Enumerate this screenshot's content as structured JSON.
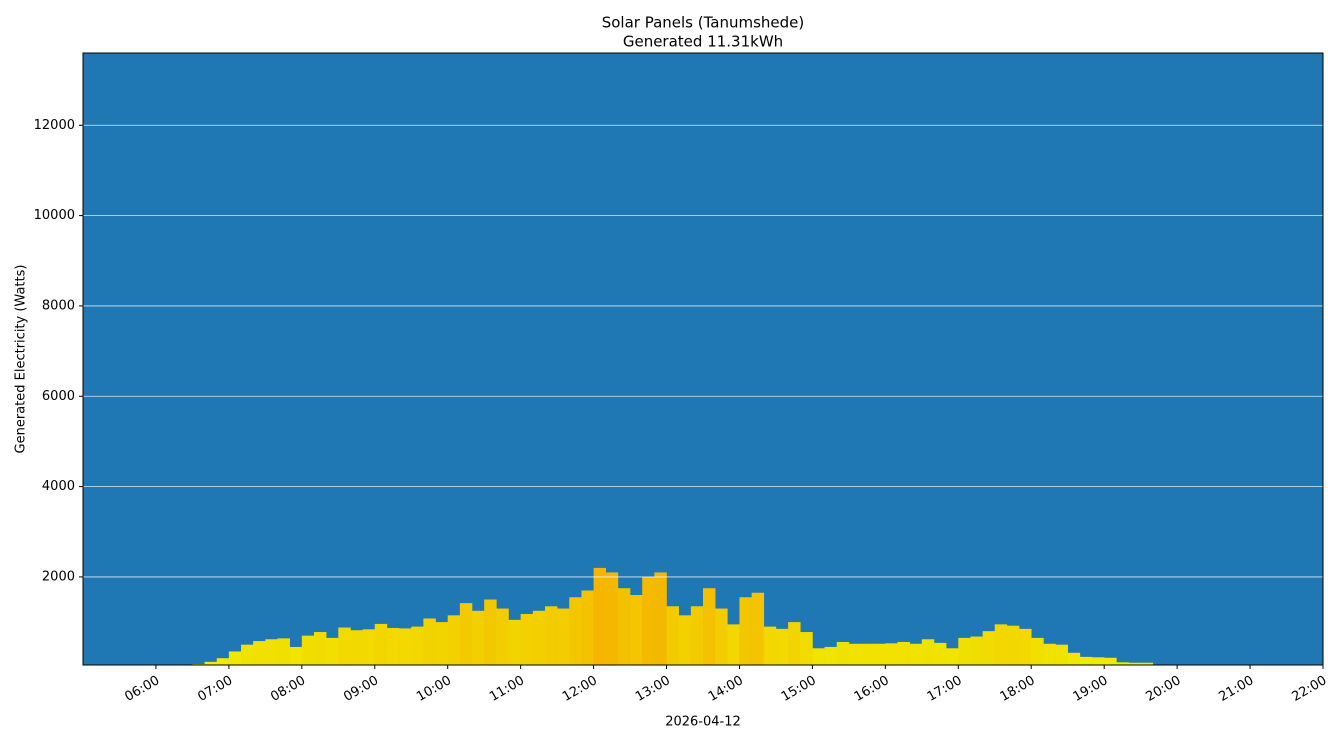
{
  "chart_data": {
    "type": "bar",
    "title": "Solar Panels (Tanumshede)",
    "subtitle": "Generated 11.31kWh",
    "y_label": "Generated Electricity (Watts)",
    "x_label": "2026-04-12",
    "x": [
      "05:50",
      "06:00",
      "06:10",
      "06:20",
      "06:30",
      "06:40",
      "06:50",
      "07:00",
      "07:10",
      "07:20",
      "07:30",
      "07:40",
      "07:50",
      "08:00",
      "08:10",
      "08:20",
      "08:30",
      "08:40",
      "08:50",
      "09:00",
      "09:10",
      "09:20",
      "09:30",
      "09:40",
      "09:50",
      "10:00",
      "10:10",
      "10:20",
      "10:30",
      "10:40",
      "10:50",
      "11:00",
      "11:10",
      "11:20",
      "11:30",
      "11:40",
      "11:50",
      "12:00",
      "12:10",
      "12:20",
      "12:30",
      "12:40",
      "12:50",
      "13:00",
      "13:10",
      "13:20",
      "13:30",
      "13:40",
      "13:50",
      "14:00",
      "14:10",
      "14:20",
      "14:30",
      "14:40",
      "14:50",
      "15:00",
      "15:10",
      "15:20",
      "15:30",
      "15:40",
      "15:50",
      "16:00",
      "16:10",
      "16:20",
      "16:30",
      "16:40",
      "16:50",
      "17:00",
      "17:10",
      "17:20",
      "17:30",
      "17:40",
      "17:50",
      "18:00",
      "18:10",
      "18:20",
      "18:30",
      "18:40",
      "18:50",
      "19:00",
      "19:10",
      "19:20",
      "19:30"
    ],
    "values": [
      60,
      50,
      60,
      60,
      70,
      120,
      200,
      350,
      500,
      580,
      620,
      640,
      450,
      700,
      780,
      650,
      880,
      820,
      840,
      960,
      870,
      860,
      900,
      1080,
      1000,
      1150,
      1420,
      1250,
      1500,
      1300,
      1050,
      1180,
      1250,
      1350,
      1300,
      1550,
      1700,
      2200,
      2100,
      1750,
      1600,
      2000,
      2100,
      1350,
      1150,
      1350,
      1750,
      1300,
      950,
      1550,
      1650,
      900,
      850,
      1000,
      780,
      420,
      450,
      560,
      520,
      520,
      520,
      530,
      560,
      520,
      620,
      540,
      420,
      650,
      680,
      800,
      950,
      920,
      850,
      650,
      520,
      500,
      320,
      230,
      220,
      210,
      110,
      100,
      100
    ],
    "color_low": "#f0ef00",
    "color_high": "#f5b500",
    "background": "#1f77b4",
    "xlim": [
      "05:00",
      "22:00"
    ],
    "xticks": [
      "06:00",
      "07:00",
      "08:00",
      "09:00",
      "10:00",
      "11:00",
      "12:00",
      "13:00",
      "14:00",
      "15:00",
      "16:00",
      "17:00",
      "18:00",
      "19:00",
      "20:00",
      "21:00",
      "22:00"
    ],
    "ylim": [
      50,
      13600
    ],
    "yticks": [
      2000,
      4000,
      6000,
      8000,
      10000,
      12000
    ],
    "grid": true
  }
}
